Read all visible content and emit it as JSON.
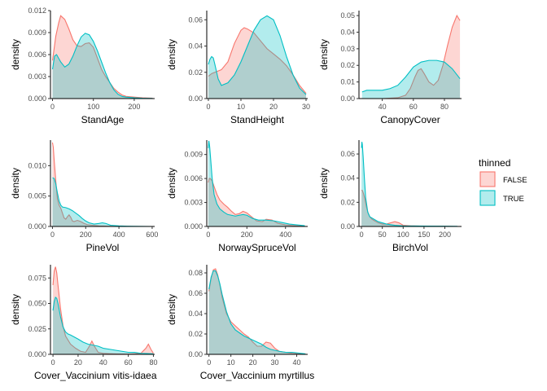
{
  "colors": {
    "FALSE": "#F8766D",
    "TRUE": "#00BFC4",
    "axis": "#000000",
    "tick_text": "#4d4d4d"
  },
  "legend": {
    "title": "thinned",
    "items": [
      {
        "label": "FALSE",
        "series_key": "FALSE"
      },
      {
        "label": "TRUE",
        "series_key": "TRUE"
      }
    ]
  },
  "chart_data": [
    {
      "type": "area",
      "xlabel": "StandAge",
      "ylabel": "density",
      "xlim": [
        -5,
        250
      ],
      "ylim": [
        0,
        0.012
      ],
      "xticks": [
        0,
        100,
        200
      ],
      "yticks": [
        0.0,
        0.003,
        0.006,
        0.009,
        0.012
      ],
      "ytick_labels": [
        "0.000",
        "0.003",
        "0.006",
        "0.009",
        "0.012"
      ],
      "series": [
        {
          "name": "FALSE",
          "x": [
            0,
            8,
            15,
            20,
            30,
            40,
            50,
            60,
            70,
            80,
            90,
            100,
            110,
            120,
            130,
            140,
            150,
            160,
            170,
            180,
            200,
            220,
            245
          ],
          "y": [
            0.0052,
            0.0085,
            0.0103,
            0.0113,
            0.0108,
            0.0095,
            0.008,
            0.0072,
            0.0071,
            0.0075,
            0.0076,
            0.007,
            0.0055,
            0.004,
            0.003,
            0.0022,
            0.0014,
            0.0009,
            0.0005,
            0.0003,
            0.0002,
            0.0001,
            5e-05
          ]
        },
        {
          "name": "TRUE",
          "x": [
            0,
            5,
            10,
            20,
            30,
            40,
            50,
            60,
            70,
            80,
            90,
            100,
            110,
            120,
            130,
            140,
            150,
            160,
            170,
            180,
            200,
            220,
            245
          ],
          "y": [
            0.004,
            0.0058,
            0.006,
            0.005,
            0.0043,
            0.0047,
            0.0058,
            0.0072,
            0.0084,
            0.0089,
            0.0087,
            0.0078,
            0.0065,
            0.005,
            0.0035,
            0.0022,
            0.0012,
            0.0006,
            0.0003,
            0.0002,
            0.0001,
            5e-05,
            2e-05
          ]
        }
      ]
    },
    {
      "type": "area",
      "xlabel": "StandHeight",
      "ylabel": "density",
      "xlim": [
        -0.5,
        30.5
      ],
      "ylim": [
        0,
        0.067
      ],
      "xticks": [
        0,
        10,
        20,
        30
      ],
      "yticks": [
        0.0,
        0.02,
        0.04,
        0.06
      ],
      "ytick_labels": [
        "0.00",
        "0.02",
        "0.04",
        "0.06"
      ],
      "series": [
        {
          "name": "FALSE",
          "x": [
            0,
            1,
            2,
            4,
            6,
            8,
            10,
            11,
            12,
            14,
            16,
            18,
            20,
            22,
            24,
            26,
            28,
            30
          ],
          "y": [
            0.017,
            0.019,
            0.02,
            0.022,
            0.028,
            0.042,
            0.052,
            0.054,
            0.053,
            0.05,
            0.044,
            0.038,
            0.034,
            0.03,
            0.025,
            0.018,
            0.01,
            0.004
          ]
        },
        {
          "name": "TRUE",
          "x": [
            0,
            0.5,
            1,
            1.5,
            2,
            3,
            4,
            6,
            8,
            10,
            12,
            14,
            16,
            18,
            20,
            22,
            24,
            26,
            28,
            30
          ],
          "y": [
            0.026,
            0.03,
            0.032,
            0.031,
            0.026,
            0.015,
            0.01,
            0.012,
            0.018,
            0.028,
            0.04,
            0.052,
            0.06,
            0.063,
            0.06,
            0.048,
            0.032,
            0.018,
            0.008,
            0.003
          ]
        }
      ]
    },
    {
      "type": "area",
      "xlabel": "CanopyCover",
      "ylabel": "density",
      "xlim": [
        25,
        91
      ],
      "ylim": [
        0,
        0.053
      ],
      "xticks": [
        40,
        60,
        80
      ],
      "yticks": [
        0.0,
        0.01,
        0.02,
        0.03,
        0.04,
        0.05
      ],
      "ytick_labels": [
        "0.00",
        "0.01",
        "0.02",
        "0.03",
        "0.04",
        "0.05"
      ],
      "series": [
        {
          "name": "FALSE",
          "x": [
            27,
            40,
            50,
            55,
            58,
            61,
            63,
            65,
            67,
            70,
            73,
            76,
            79,
            82,
            85,
            88,
            90
          ],
          "y": [
            0.0,
            0.0,
            0.0005,
            0.002,
            0.006,
            0.013,
            0.017,
            0.018,
            0.015,
            0.01,
            0.008,
            0.011,
            0.02,
            0.032,
            0.043,
            0.05,
            0.047
          ]
        },
        {
          "name": "TRUE",
          "x": [
            27,
            30,
            40,
            45,
            50,
            55,
            60,
            65,
            70,
            75,
            80,
            85,
            90
          ],
          "y": [
            0.004,
            0.005,
            0.005,
            0.006,
            0.008,
            0.013,
            0.019,
            0.022,
            0.023,
            0.023,
            0.022,
            0.018,
            0.012
          ]
        }
      ]
    },
    {
      "type": "area",
      "xlabel": "PineVol",
      "ylabel": "density",
      "xlim": [
        -12,
        615
      ],
      "ylim": [
        0,
        0.0142
      ],
      "xticks": [
        0,
        200,
        400,
        600
      ],
      "yticks": [
        0.0,
        0.005,
        0.01
      ],
      "ytick_labels": [
        "0.000",
        "0.005",
        "0.010"
      ],
      "series": [
        {
          "name": "FALSE",
          "x": [
            0,
            5,
            10,
            20,
            30,
            40,
            50,
            60,
            70,
            80,
            90,
            100,
            110,
            120,
            130,
            150,
            170,
            190,
            210,
            240,
            280,
            330,
            400,
            500,
            600
          ],
          "y": [
            0.0138,
            0.013,
            0.011,
            0.0075,
            0.0045,
            0.0035,
            0.003,
            0.0022,
            0.0014,
            0.0012,
            0.0016,
            0.0019,
            0.0015,
            0.0009,
            0.0008,
            0.001,
            0.0008,
            0.0005,
            0.0003,
            0.0002,
            0.0001,
            5e-05,
            0.0,
            0.0,
            0.0
          ]
        },
        {
          "name": "TRUE",
          "x": [
            0,
            10,
            20,
            30,
            40,
            50,
            60,
            80,
            100,
            120,
            140,
            160,
            180,
            200,
            220,
            250,
            280,
            300,
            320,
            350,
            400,
            450,
            500,
            600
          ],
          "y": [
            0.008,
            0.0079,
            0.007,
            0.0055,
            0.0042,
            0.0035,
            0.0032,
            0.0031,
            0.0029,
            0.0026,
            0.0022,
            0.0018,
            0.0013,
            0.0009,
            0.0006,
            0.0004,
            0.0005,
            0.0006,
            0.0005,
            0.0002,
            0.0001,
            5e-05,
            2e-05,
            0.0
          ]
        }
      ]
    },
    {
      "type": "area",
      "xlabel": "NorwaySpruceVol",
      "ylabel": "density",
      "xlim": [
        -8,
        515
      ],
      "ylim": [
        0,
        0.0108
      ],
      "xticks": [
        0,
        200,
        400
      ],
      "yticks": [
        0.0,
        0.003,
        0.006,
        0.009
      ],
      "ytick_labels": [
        "0.000",
        "0.003",
        "0.006",
        "0.009"
      ],
      "series": [
        {
          "name": "FALSE",
          "x": [
            0,
            5,
            10,
            20,
            30,
            45,
            60,
            80,
            100,
            120,
            140,
            160,
            180,
            200,
            220,
            250,
            280,
            300,
            330,
            360,
            400,
            450,
            500
          ],
          "y": [
            0.0055,
            0.006,
            0.006,
            0.0057,
            0.005,
            0.004,
            0.0033,
            0.0028,
            0.0024,
            0.0019,
            0.0015,
            0.0016,
            0.0019,
            0.0017,
            0.0013,
            0.0007,
            0.0006,
            0.0009,
            0.0008,
            0.0004,
            0.0002,
            0.0001,
            5e-05
          ]
        },
        {
          "name": "TRUE",
          "x": [
            0,
            3,
            7,
            12,
            20,
            30,
            45,
            60,
            80,
            100,
            120,
            140,
            160,
            180,
            200,
            230,
            260,
            300,
            340,
            380,
            420,
            460,
            500
          ],
          "y": [
            0.0098,
            0.0107,
            0.01,
            0.0085,
            0.006,
            0.004,
            0.0028,
            0.0022,
            0.0018,
            0.0015,
            0.0014,
            0.0013,
            0.0014,
            0.0015,
            0.0014,
            0.001,
            0.0008,
            0.0008,
            0.0007,
            0.0005,
            0.0003,
            0.0002,
            0.0001
          ]
        }
      ]
    },
    {
      "type": "area",
      "xlabel": "BirchVol",
      "ylabel": "density",
      "xlim": [
        -6,
        240
      ],
      "ylim": [
        0,
        0.0715
      ],
      "xticks": [
        0,
        50,
        100,
        150,
        200
      ],
      "yticks": [
        0.0,
        0.02,
        0.04,
        0.06
      ],
      "ytick_labels": [
        "0.00",
        "0.02",
        "0.04",
        "0.06"
      ],
      "series": [
        {
          "name": "FALSE",
          "x": [
            0,
            1.5,
            3,
            5,
            8,
            12,
            16,
            20,
            25,
            30,
            40,
            50,
            60,
            70,
            80,
            90,
            100,
            120,
            150,
            200,
            230
          ],
          "y": [
            0.03,
            0.03,
            0.029,
            0.027,
            0.023,
            0.016,
            0.011,
            0.008,
            0.006,
            0.005,
            0.003,
            0.002,
            0.002,
            0.003,
            0.004,
            0.003,
            0.001,
            0.0005,
            0.0002,
            0.0001,
            0.0
          ]
        },
        {
          "name": "TRUE",
          "x": [
            0,
            1,
            2,
            4,
            7,
            10,
            15,
            20,
            25,
            30,
            40,
            50,
            60,
            80,
            100,
            130,
            160,
            200,
            230
          ],
          "y": [
            0.065,
            0.07,
            0.068,
            0.058,
            0.04,
            0.024,
            0.012,
            0.008,
            0.007,
            0.006,
            0.004,
            0.003,
            0.002,
            0.001,
            0.0005,
            0.0004,
            0.0003,
            0.0002,
            0.0001
          ]
        }
      ]
    },
    {
      "type": "area",
      "xlabel": "Cover_Vaccinium vitis-idaea",
      "ylabel": "density",
      "xlim": [
        -2,
        81
      ],
      "ylim": [
        0,
        0.088
      ],
      "xticks": [
        0,
        20,
        40,
        60,
        80
      ],
      "yticks": [
        0.0,
        0.025,
        0.05,
        0.075
      ],
      "ytick_labels": [
        "0.000",
        "0.025",
        "0.050",
        "0.075"
      ],
      "series": [
        {
          "name": "FALSE",
          "x": [
            0,
            1,
            2,
            3,
            4,
            6,
            8,
            10,
            14,
            18,
            22,
            26,
            29,
            31,
            33,
            36,
            40,
            45,
            50,
            60,
            70,
            74,
            76,
            78,
            80
          ],
          "y": [
            0.068,
            0.082,
            0.086,
            0.08,
            0.068,
            0.045,
            0.028,
            0.018,
            0.01,
            0.006,
            0.003,
            0.002,
            0.008,
            0.013,
            0.008,
            0.002,
            0.001,
            0.0007,
            0.0005,
            0.0003,
            0.001,
            0.006,
            0.01,
            0.005,
            0.001
          ]
        },
        {
          "name": "TRUE",
          "x": [
            0,
            1,
            2,
            3,
            4,
            6,
            8,
            10,
            12,
            14,
            17,
            20,
            24,
            28,
            32,
            36,
            40,
            45,
            50,
            55,
            60,
            65,
            70,
            75,
            80
          ],
          "y": [
            0.043,
            0.052,
            0.056,
            0.055,
            0.05,
            0.037,
            0.027,
            0.022,
            0.02,
            0.019,
            0.017,
            0.015,
            0.012,
            0.01,
            0.009,
            0.008,
            0.006,
            0.005,
            0.004,
            0.003,
            0.002,
            0.002,
            0.001,
            0.0008,
            0.0005
          ]
        }
      ]
    },
    {
      "type": "area",
      "xlabel": "Cover_Vaccinium myrtillus",
      "ylabel": "density",
      "xlim": [
        -1,
        45
      ],
      "ylim": [
        0,
        0.088
      ],
      "xticks": [
        0,
        10,
        20,
        30,
        40
      ],
      "yticks": [
        0.0,
        0.02,
        0.04,
        0.06,
        0.08
      ],
      "ytick_labels": [
        "0.00",
        "0.02",
        "0.04",
        "0.06",
        "0.08"
      ],
      "series": [
        {
          "name": "FALSE",
          "x": [
            0,
            1,
            2,
            3,
            4,
            5,
            6,
            8,
            10,
            12,
            14,
            16,
            18,
            20,
            22,
            24,
            26,
            28,
            30,
            32,
            35,
            38,
            42,
            44
          ],
          "y": [
            0.062,
            0.075,
            0.083,
            0.084,
            0.078,
            0.068,
            0.056,
            0.04,
            0.032,
            0.028,
            0.024,
            0.02,
            0.017,
            0.012,
            0.008,
            0.008,
            0.012,
            0.011,
            0.006,
            0.003,
            0.002,
            0.001,
            0.0005,
            0.0003
          ]
        },
        {
          "name": "TRUE",
          "x": [
            0,
            1,
            2,
            3,
            4,
            5,
            6,
            8,
            10,
            12,
            14,
            16,
            18,
            20,
            22,
            24,
            26,
            28,
            30,
            32,
            35,
            38,
            42,
            44
          ],
          "y": [
            0.064,
            0.076,
            0.082,
            0.082,
            0.077,
            0.069,
            0.059,
            0.042,
            0.03,
            0.024,
            0.021,
            0.018,
            0.016,
            0.014,
            0.012,
            0.01,
            0.007,
            0.005,
            0.004,
            0.003,
            0.002,
            0.002,
            0.001,
            0.0005
          ]
        }
      ]
    }
  ]
}
